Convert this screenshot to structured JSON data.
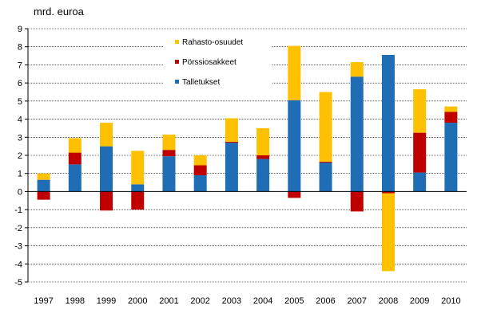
{
  "chart_data": {
    "type": "bar",
    "stacked": true,
    "title": "",
    "unit_label": "mrd. euroa",
    "xlabel": "",
    "ylabel": "",
    "ylim": [
      -5,
      9
    ],
    "yticks": [
      -5,
      -4,
      -3,
      -2,
      -1,
      0,
      1,
      2,
      3,
      4,
      5,
      6,
      7,
      8,
      9
    ],
    "grid": true,
    "legend_position": "top-left, inside plot",
    "categories": [
      "1997",
      "1998",
      "1999",
      "2000",
      "2001",
      "2002",
      "2003",
      "2004",
      "2005",
      "2006",
      "2007",
      "2008",
      "2009",
      "2010"
    ],
    "series": [
      {
        "name": "Talletukset",
        "color": "#1F6DB5",
        "values": [
          0.65,
          1.5,
          2.5,
          0.4,
          1.95,
          0.9,
          2.7,
          1.8,
          5.05,
          1.6,
          6.35,
          7.55,
          1.05,
          3.8
        ]
      },
      {
        "name": "Pörssiosakkeet",
        "color": "#C00000",
        "values": [
          -0.45,
          0.65,
          -1.05,
          -1.0,
          0.35,
          0.55,
          0.05,
          0.2,
          -0.35,
          0.05,
          -1.1,
          -0.1,
          2.2,
          0.6
        ]
      },
      {
        "name": "Rahasto-osuudet",
        "color": "#FFC000",
        "values": [
          0.35,
          0.8,
          1.3,
          1.85,
          0.85,
          0.55,
          1.3,
          1.5,
          3.0,
          3.85,
          0.8,
          -4.3,
          2.4,
          0.3
        ]
      }
    ],
    "legend_order": [
      "Rahasto-osuudet",
      "Pörssiosakkeet",
      "Talletukset"
    ]
  }
}
